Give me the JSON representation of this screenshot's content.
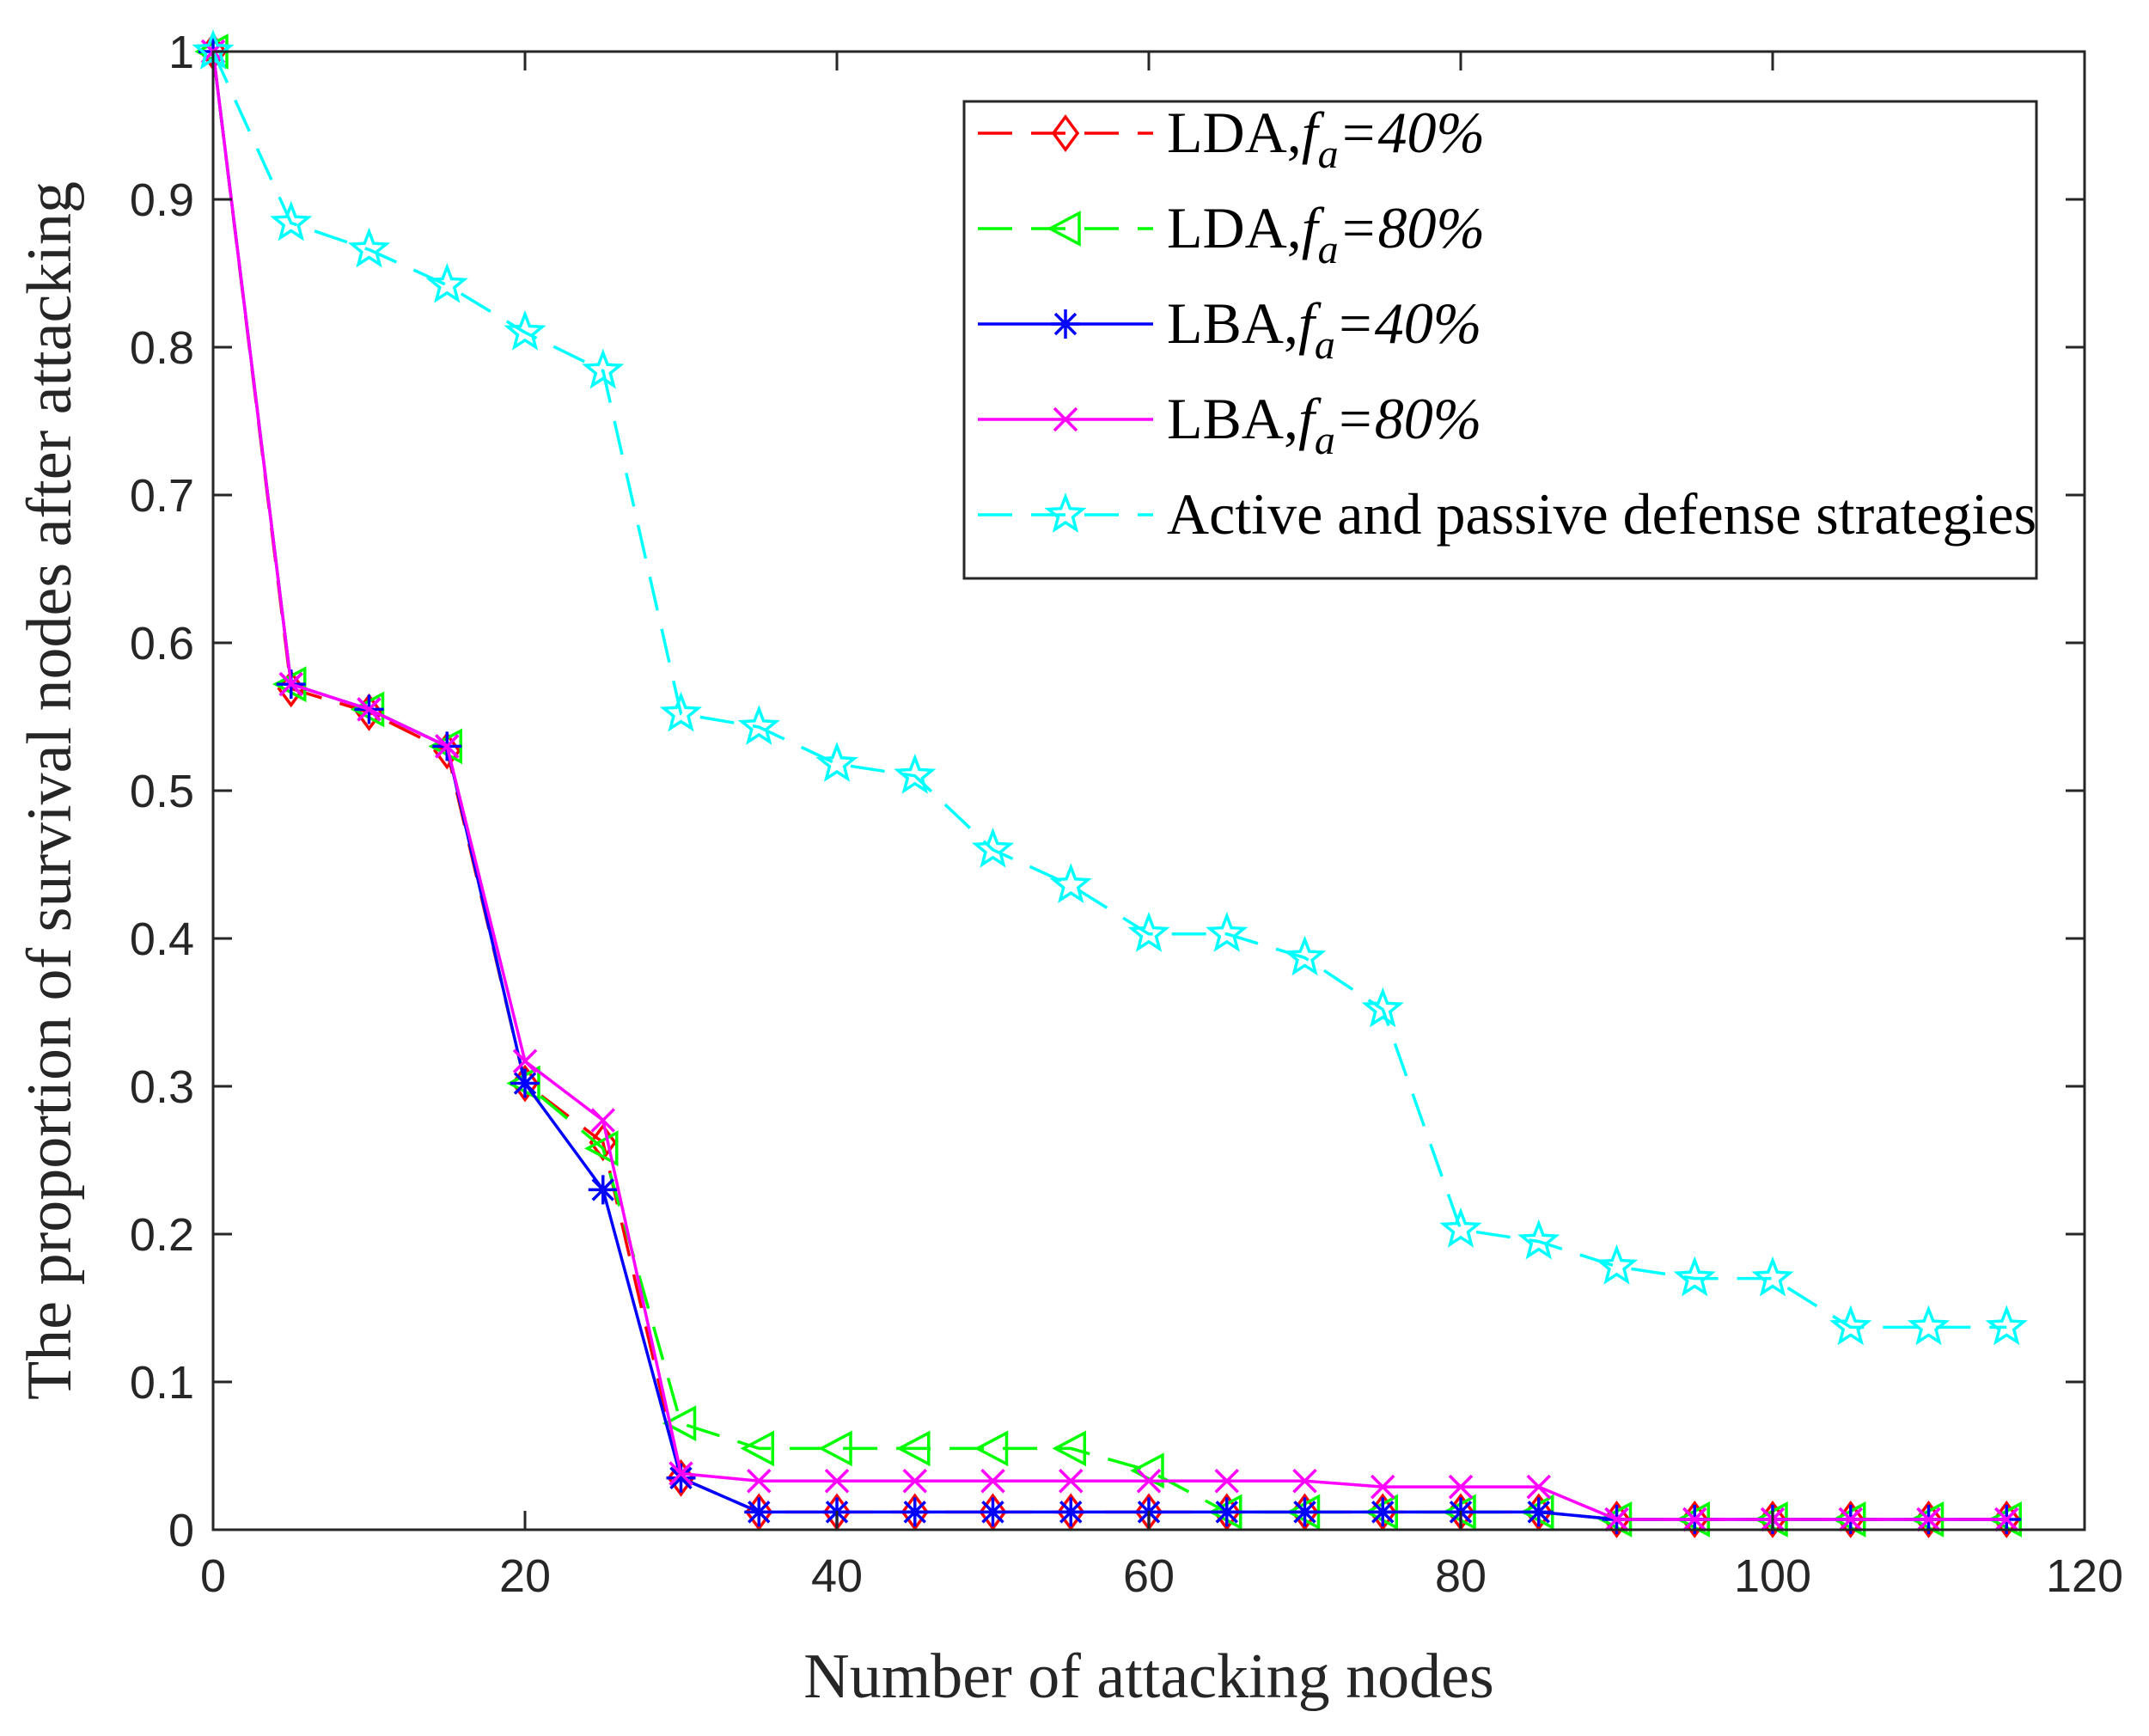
{
  "chart_data": {
    "type": "line",
    "title": "",
    "xlabel": "Number of attacking nodes",
    "ylabel": "The proportion of survival nodes after attacking",
    "xlim": [
      0,
      120
    ],
    "ylim": [
      0,
      1
    ],
    "xticks": [
      0,
      20,
      40,
      60,
      80,
      100,
      120
    ],
    "yticks": [
      0,
      0.1,
      0.2,
      0.3,
      0.4,
      0.5,
      0.6,
      0.7,
      0.8,
      0.9,
      1
    ],
    "xtick_labels": [
      "0",
      "20",
      "40",
      "60",
      "80",
      "100",
      "120"
    ],
    "ytick_labels": [
      "0",
      "0.1",
      "0.2",
      "0.3",
      "0.4",
      "0.5",
      "0.6",
      "0.7",
      "0.8",
      "0.9",
      "1"
    ],
    "grid": false,
    "legend_position": "top-right",
    "x": [
      0,
      5,
      10,
      15,
      20,
      25,
      30,
      35,
      40,
      45,
      50,
      55,
      60,
      65,
      70,
      75,
      80,
      85,
      90,
      95,
      100,
      105,
      110,
      115
    ],
    "series": [
      {
        "name": "LDA,f_a=40%",
        "legend": {
          "prefix": "LDA,",
          "var": "f",
          "sub": "a",
          "suffix": "=40%"
        },
        "color": "#ff0000",
        "dash": "dashed",
        "marker": "diamond",
        "values": [
          1.0,
          0.569,
          0.553,
          0.527,
          0.302,
          0.262,
          0.035,
          0.012,
          0.012,
          0.012,
          0.012,
          0.012,
          0.012,
          0.012,
          0.012,
          0.012,
          0.012,
          0.012,
          0.007,
          0.007,
          0.007,
          0.007,
          0.007,
          0.007
        ]
      },
      {
        "name": "LDA,f_a=80%",
        "legend": {
          "prefix": "LDA,",
          "var": "f",
          "sub": "a",
          "suffix": "=80%"
        },
        "color": "#00ff00",
        "dash": "dashed",
        "marker": "triangle-left",
        "values": [
          1.0,
          0.572,
          0.555,
          0.53,
          0.302,
          0.258,
          0.072,
          0.055,
          0.055,
          0.055,
          0.055,
          0.055,
          0.04,
          0.012,
          0.012,
          0.012,
          0.012,
          0.012,
          0.007,
          0.007,
          0.007,
          0.007,
          0.007,
          0.007
        ]
      },
      {
        "name": "LBA,f_a=40%",
        "legend": {
          "prefix": "LBA,",
          "var": "f",
          "sub": "a",
          "suffix": "=40%"
        },
        "color": "#0000ff",
        "dash": "solid",
        "marker": "asterisk",
        "values": [
          1.0,
          0.572,
          0.555,
          0.53,
          0.302,
          0.23,
          0.035,
          0.012,
          0.012,
          0.012,
          0.012,
          0.012,
          0.012,
          0.012,
          0.012,
          0.012,
          0.012,
          0.012,
          0.007,
          0.007,
          0.007,
          0.007,
          0.007,
          0.007
        ]
      },
      {
        "name": "LBA,f_a=80%",
        "legend": {
          "prefix": "LBA,",
          "var": "f",
          "sub": "a",
          "suffix": "=80%"
        },
        "color": "#ff00ff",
        "dash": "solid",
        "marker": "x",
        "values": [
          1.0,
          0.572,
          0.555,
          0.53,
          0.317,
          0.277,
          0.038,
          0.033,
          0.033,
          0.033,
          0.033,
          0.033,
          0.033,
          0.033,
          0.033,
          0.029,
          0.029,
          0.029,
          0.007,
          0.007,
          0.007,
          0.007,
          0.007,
          0.007
        ]
      },
      {
        "name": "Active and passive defense strategies",
        "legend": {
          "prefix": "Active and passive defense strategies",
          "var": "",
          "sub": "",
          "suffix": ""
        },
        "color": "#00ffff",
        "dash": "dashed",
        "marker": "star",
        "values": [
          1.0,
          0.884,
          0.866,
          0.842,
          0.81,
          0.784,
          0.552,
          0.543,
          0.518,
          0.51,
          0.46,
          0.436,
          0.403,
          0.403,
          0.387,
          0.352,
          0.203,
          0.195,
          0.178,
          0.17,
          0.17,
          0.137,
          0.137,
          0.137
        ]
      }
    ]
  }
}
